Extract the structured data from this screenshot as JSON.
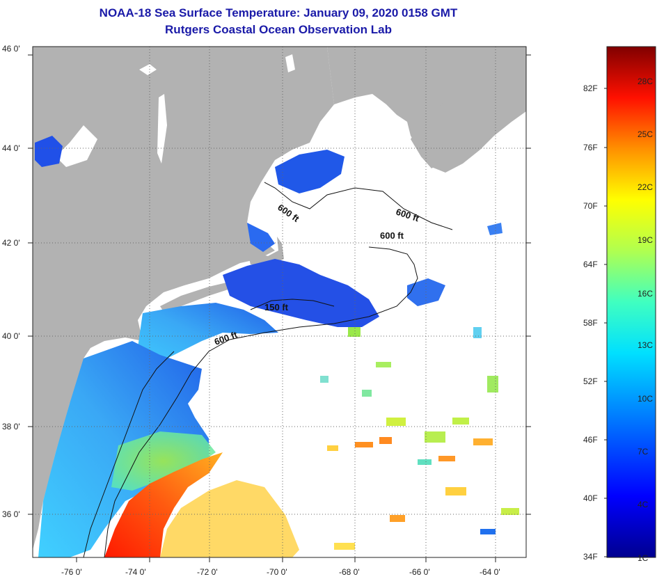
{
  "title": "NOAA-18 Sea Surface Temperature:  January 09, 2020 0158 GMT",
  "subtitle": "Rutgers Coastal Ocean Observation Lab",
  "latitude_labels": [
    "46 0'",
    "44 0'",
    "42 0'",
    "40 0'",
    "38 0'",
    "36 0'"
  ],
  "longitude_labels": [
    "-76 0'",
    "-74 0'",
    "-72 0'",
    "-70 0'",
    "-68 0'",
    "-66 0'",
    "-64 0'"
  ],
  "contour_labels": [
    "600 ft",
    "600 ft",
    "600 ft",
    "150 ft",
    "600 ft"
  ],
  "colorbar": {
    "fahrenheit": [
      "82F",
      "76F",
      "70F",
      "64F",
      "58F",
      "52F",
      "46F",
      "40F",
      "34F"
    ],
    "celsius": [
      "28C",
      "25C",
      "22C",
      "19C",
      "16C",
      "13C",
      "10C",
      "7C",
      "4C",
      "1C"
    ]
  },
  "colors": {
    "land": "#b2b2b2",
    "title": "#1a1aa8",
    "ocean_no_data": "#ffffff"
  }
}
